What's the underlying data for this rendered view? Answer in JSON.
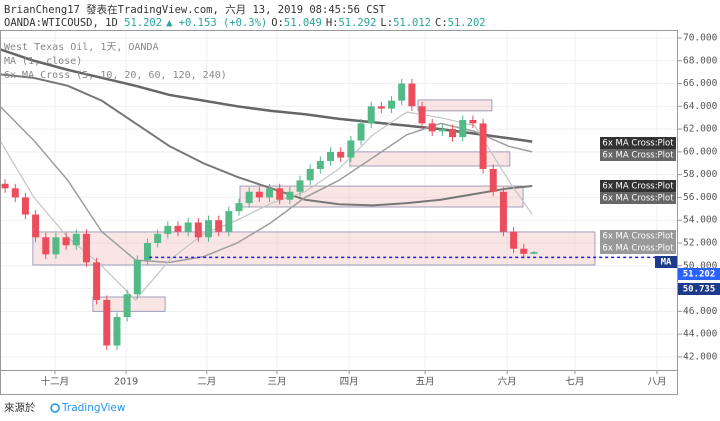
{
  "header": {
    "author_line": "BrianCheng17 發表在TradingView.com, 六月 13, 2019 08:45:56 CST",
    "symbol": "OANDA:WTICOUSD, 1D",
    "price": "51.202",
    "change": "▲ +0.153 (+0.3%)",
    "ohlc": [
      {
        "label": "O:",
        "value": "51.049"
      },
      {
        "label": "H:",
        "value": "51.292"
      },
      {
        "label": "L:",
        "value": "51.012"
      },
      {
        "label": "C:",
        "value": "51.202"
      }
    ]
  },
  "footer": {
    "source": "來源於",
    "brand": "TradingView"
  },
  "chart_data": {
    "type": "candlestick",
    "legend": [
      "West Texas Oil, 1天, OANDA",
      "MA (1, close)",
      "6x MA Cross (5, 10, 20, 60, 120, 240)"
    ],
    "up_color": "#53b987",
    "down_color": "#eb4d5c",
    "grid": true,
    "xlim": [
      0,
      200
    ],
    "ylim": [
      40.85,
      70.7
    ],
    "xticks": [
      {
        "value": 16.2,
        "label": "十二月"
      },
      {
        "value": 37.2,
        "label": "2019"
      },
      {
        "value": 61,
        "label": "二月"
      },
      {
        "value": 81.7,
        "label": "三月"
      },
      {
        "value": 103,
        "label": "四月"
      },
      {
        "value": 125.4,
        "label": "五月"
      },
      {
        "value": 149.6,
        "label": "六月"
      },
      {
        "value": 169.6,
        "label": "七月"
      },
      {
        "value": 193.8,
        "label": "八月"
      }
    ],
    "yticks": [
      {
        "value": 42,
        "label": "42.000"
      },
      {
        "value": 44,
        "label": "44.000"
      },
      {
        "value": 46,
        "label": "46.000"
      },
      {
        "value": 48,
        "label": "48.000"
      },
      {
        "value": 50,
        "label": "50.000"
      },
      {
        "value": 52,
        "label": "52.000"
      },
      {
        "value": 54,
        "label": "54.000"
      },
      {
        "value": 56,
        "label": "56.000"
      },
      {
        "value": 58,
        "label": "58.000"
      },
      {
        "value": 60,
        "label": "60.000"
      },
      {
        "value": 62,
        "label": "62.000"
      },
      {
        "value": 64,
        "label": "64.000"
      },
      {
        "value": 66,
        "label": "66.000"
      },
      {
        "value": 68,
        "label": "68.000"
      },
      {
        "value": 70,
        "label": "70.000"
      }
    ],
    "x": [
      1.5,
      4.5,
      7.5,
      10.5,
      13.5,
      16.5,
      19.5,
      22.5,
      25.5,
      28.5,
      31.5,
      34.5,
      37.5,
      40.5,
      43.5,
      46.5,
      49.5,
      52.5,
      55.5,
      58.5,
      61.5,
      64.5,
      67.5,
      70.5,
      73.5,
      76.5,
      79.5,
      82.5,
      85.5,
      88.5,
      91.5,
      94.5,
      97.5,
      100.5,
      103.5,
      106.5,
      109.5,
      112.5,
      115.5,
      118.5,
      121.5,
      124.5,
      127.5,
      130.5,
      133.5,
      136.5,
      139.5,
      142.5,
      145.5,
      148.5,
      151.5,
      154.5,
      157.5
    ],
    "open": [
      57.2,
      56.8,
      56.0,
      54.5,
      52.5,
      51.0,
      52.5,
      51.8,
      52.8,
      50.3,
      47.0,
      43.0,
      45.5,
      47.5,
      50.5,
      52.0,
      52.8,
      53.5,
      53.0,
      53.8,
      52.5,
      54.0,
      53.0,
      54.8,
      55.5,
      56.5,
      56.0,
      56.8,
      55.8,
      56.5,
      57.5,
      58.5,
      59.2,
      60.0,
      59.5,
      61.0,
      62.5,
      64.0,
      63.8,
      64.5,
      66.0,
      64.0,
      62.5,
      61.8,
      62.0,
      61.3,
      62.8,
      62.5,
      58.5,
      56.5,
      53.0,
      51.5,
      51.049
    ],
    "high": [
      57.6,
      57.2,
      56.4,
      54.9,
      52.9,
      52.9,
      52.9,
      53.2,
      53.2,
      50.7,
      47.4,
      45.9,
      47.9,
      50.9,
      52.4,
      53.2,
      53.9,
      53.9,
      54.2,
      54.2,
      54.4,
      54.4,
      55.2,
      55.9,
      56.9,
      56.9,
      57.2,
      57.2,
      56.9,
      57.9,
      58.9,
      59.6,
      60.4,
      60.4,
      61.4,
      62.9,
      64.4,
      64.4,
      64.9,
      66.4,
      66.4,
      64.4,
      62.9,
      62.4,
      62.4,
      63.2,
      63.2,
      62.9,
      58.9,
      56.9,
      53.4,
      51.9,
      51.292
    ],
    "low": [
      56.4,
      55.6,
      54.1,
      52.1,
      50.6,
      50.6,
      51.4,
      51.4,
      49.9,
      46.6,
      42.6,
      42.6,
      45.1,
      47.1,
      50.1,
      51.6,
      52.4,
      52.6,
      52.6,
      52.1,
      52.1,
      52.6,
      52.6,
      54.4,
      55.1,
      55.6,
      55.6,
      55.4,
      55.4,
      56.1,
      57.1,
      58.1,
      58.8,
      59.1,
      59.1,
      60.6,
      62.1,
      63.4,
      63.4,
      64.1,
      63.6,
      62.1,
      61.4,
      61.4,
      60.9,
      60.9,
      62.1,
      58.1,
      56.1,
      52.6,
      51.1,
      50.649,
      51.012
    ],
    "close": [
      56.8,
      56.0,
      54.5,
      52.5,
      51.0,
      52.5,
      51.8,
      52.8,
      50.3,
      47.0,
      43.0,
      45.5,
      47.5,
      50.5,
      52.0,
      52.8,
      53.5,
      53.0,
      53.8,
      52.5,
      54.0,
      53.0,
      54.8,
      55.5,
      56.5,
      56.0,
      56.8,
      55.8,
      56.5,
      57.5,
      58.5,
      59.2,
      60.0,
      59.5,
      61.0,
      62.5,
      64.0,
      63.8,
      64.5,
      66.0,
      64.0,
      62.5,
      61.8,
      62.0,
      61.3,
      62.8,
      62.5,
      58.5,
      56.5,
      53.0,
      51.5,
      51.049,
      51.202
    ],
    "ma_x": [
      0,
      10,
      20,
      30,
      40,
      50,
      60,
      70,
      80,
      90,
      100,
      110,
      120,
      130,
      140,
      150,
      157
    ],
    "ma_series": [
      {
        "color": "#666666",
        "width": 2.5,
        "values": [
          69.0,
          68.0,
          67.2,
          66.5,
          65.8,
          65.0,
          64.5,
          64.0,
          63.6,
          63.3,
          62.9,
          62.6,
          62.3,
          62.0,
          61.6,
          61.2,
          60.9
        ]
      },
      {
        "color": "#777777",
        "width": 2,
        "values": [
          66.8,
          66.5,
          65.8,
          64.5,
          62.5,
          60.5,
          59.0,
          57.8,
          56.8,
          55.8,
          55.4,
          55.3,
          55.5,
          55.8,
          56.3,
          56.8,
          57.0
        ]
      },
      {
        "color": "#9e9e9e",
        "width": 1.5,
        "values": [
          64.0,
          61.0,
          57.5,
          53.0,
          50.5,
          50.3,
          50.8,
          52.0,
          53.8,
          56.0,
          57.5,
          59.5,
          61.5,
          62.5,
          61.8,
          60.5,
          60.0
        ]
      },
      {
        "color": "#c4c4c4",
        "width": 1.2,
        "values": [
          61.0,
          56.0,
          52.5,
          50.0,
          47.0,
          50.5,
          52.8,
          54.0,
          55.5,
          56.5,
          58.5,
          61.5,
          63.5,
          63.0,
          62.3,
          57.5,
          54.5
        ]
      }
    ],
    "zones": [
      {
        "x": [
          9.7,
          175.5
        ],
        "y": [
          50.07,
          52.97
        ]
      },
      {
        "x": [
          27.4,
          48.7
        ],
        "y": [
          46.0,
          47.26
        ]
      },
      {
        "x": [
          70.8,
          154.3
        ],
        "y": [
          55.16,
          57.0
        ]
      },
      {
        "x": [
          103.2,
          150.4
        ],
        "y": [
          58.76,
          60.0
        ]
      },
      {
        "x": [
          123.3,
          145.1
        ],
        "y": [
          63.6,
          64.56
        ]
      }
    ],
    "hline": {
      "value": 50.735,
      "x": [
        44,
        195
      ],
      "color": "#1a1aff"
    },
    "plot_labels": [
      "6x MA Cross:Plot",
      "6x MA Cross:Plot",
      "6x MA Cross:Plot",
      "6x MA Cross:Plot",
      "6x MA Cross:Plot",
      "6x MA Cross:Plot"
    ],
    "price_labels": [
      {
        "label": "MA",
        "color": "#1e3a8a"
      },
      {
        "label": "51.202",
        "color": "#2962ff"
      },
      {
        "label": "50.735",
        "color": "#1e3a8a"
      }
    ]
  }
}
